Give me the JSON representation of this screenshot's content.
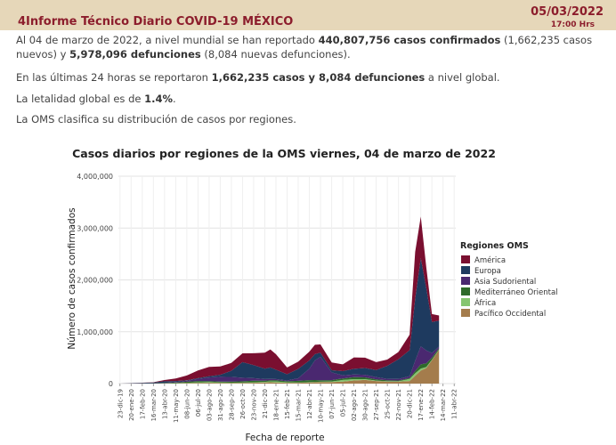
{
  "header": {
    "title": "4Informe Técnico Diario COVID-19 MÉXICO",
    "date": "05/03/2022",
    "time": "17:00 Hrs"
  },
  "summary": {
    "p1": {
      "t1": "Al 04 de marzo de 2022, a nivel mundial se han reportado ",
      "b1": "440,807,756 casos confirmados",
      "t2": " (1,662,235 casos nuevos) y ",
      "b2": "5,978,096 defunciones",
      "t3": " (8,084 nuevas defunciones)."
    },
    "p2": {
      "t1": "En las últimas 24 horas se reportaron ",
      "b1": "1,662,235 casos y 8,084 defunciones",
      "t2": " a nivel global."
    },
    "p3": {
      "t1": "La letalidad global es de ",
      "b1": "1.4%",
      "t2": "."
    },
    "p4": "La OMS clasifica su distribución de casos por regiones."
  },
  "colors": {
    "America": "#7a0f30",
    "Europa": "#1e3a5f",
    "Asia Sudoriental": "#4a2870",
    "Mediterraneo Oriental": "#2e6a2a",
    "Africa": "#86c56f",
    "Pacifico Occidental": "#a47c4c"
  },
  "chart_data": {
    "type": "area",
    "title": "Casos diarios por regiones de la OMS viernes, 04 de marzo de 2022",
    "xlabel": "Fecha de reporte",
    "ylabel": "Número de casos confirmados",
    "ylim": [
      0,
      4000000
    ],
    "yticks": [
      "0",
      "1,000,000",
      "2,000,000",
      "3,000,000",
      "4,000,000"
    ],
    "ytick_values": [
      0,
      1000000,
      2000000,
      3000000,
      4000000
    ],
    "xticks": [
      "23-dic-19",
      "20-ene-20",
      "17-feb-20",
      "16-mar-20",
      "13-abr-20",
      "11-may-20",
      "08-jun-20",
      "06-jul-20",
      "03-ago-20",
      "31-ago-20",
      "28-sep-20",
      "26-oct-20",
      "23-nov-20",
      "21-dic-20",
      "18-ene-21",
      "15-feb-21",
      "15-mar-21",
      "12-abr-21",
      "10-may-21",
      "07-jun-21",
      "05-jul-21",
      "02-ago-21",
      "30-ago-21",
      "27-sep-21",
      "25-oct-21",
      "22-nov-21",
      "20-dic-21",
      "17-ene-22",
      "14-feb-22",
      "14-mar-22",
      "11-abr-22"
    ],
    "legend_title": "Regiones OMS",
    "legend_position": "right",
    "grid": true,
    "x": [
      "23-dic-19",
      "16-mar-20",
      "13-abr-20",
      "11-may-20",
      "08-jun-20",
      "06-jul-20",
      "03-ago-20",
      "31-ago-20",
      "28-sep-20",
      "26-oct-20",
      "23-nov-20",
      "21-dic-20",
      "04-ene-21",
      "18-ene-21",
      "15-feb-21",
      "15-mar-21",
      "12-abr-21",
      "26-abr-21",
      "10-may-21",
      "07-jun-21",
      "05-jul-21",
      "02-ago-21",
      "30-ago-21",
      "27-sep-21",
      "25-oct-21",
      "22-nov-21",
      "20-dic-21",
      "03-ene-22",
      "17-ene-22",
      "31-ene-22",
      "14-feb-22",
      "04-mar-22"
    ],
    "series": [
      {
        "name": "América",
        "values": [
          0,
          5000,
          25000,
          50000,
          90000,
          150000,
          180000,
          160000,
          150000,
          170000,
          230000,
          310000,
          350000,
          300000,
          130000,
          140000,
          170000,
          180000,
          160000,
          150000,
          130000,
          220000,
          200000,
          150000,
          120000,
          140000,
          300000,
          900000,
          800000,
          400000,
          150000,
          100000
        ]
      },
      {
        "name": "Europa",
        "values": [
          0,
          15000,
          30000,
          20000,
          10000,
          15000,
          25000,
          40000,
          120000,
          300000,
          250000,
          200000,
          220000,
          180000,
          120000,
          180000,
          160000,
          120000,
          80000,
          40000,
          80000,
          110000,
          130000,
          140000,
          250000,
          380000,
          500000,
          1200000,
          1700000,
          1200000,
          600000,
          500000
        ]
      },
      {
        "name": "Asia Sudoriental",
        "values": [
          0,
          500,
          3000,
          10000,
          20000,
          40000,
          70000,
          90000,
          90000,
          70000,
          50000,
          30000,
          25000,
          20000,
          15000,
          50000,
          220000,
          380000,
          450000,
          150000,
          60000,
          50000,
          50000,
          40000,
          30000,
          30000,
          40000,
          200000,
          350000,
          250000,
          90000,
          30000
        ]
      },
      {
        "name": "Mediterráneo Oriental",
        "values": [
          0,
          2000,
          5000,
          10000,
          20000,
          25000,
          18000,
          18000,
          20000,
          25000,
          30000,
          25000,
          22000,
          25000,
          20000,
          30000,
          40000,
          35000,
          30000,
          25000,
          30000,
          40000,
          35000,
          25000,
          18000,
          15000,
          15000,
          40000,
          80000,
          70000,
          40000,
          25000
        ]
      },
      {
        "name": "África",
        "values": [
          0,
          200,
          1000,
          3000,
          8000,
          12000,
          15000,
          10000,
          8000,
          7000,
          10000,
          12000,
          18000,
          20000,
          10000,
          8000,
          7000,
          8000,
          6000,
          12000,
          30000,
          25000,
          15000,
          8000,
          5000,
          5000,
          40000,
          50000,
          40000,
          20000,
          10000,
          8000
        ]
      },
      {
        "name": "Pacífico Occidental",
        "values": [
          0,
          3000,
          5000,
          6000,
          8000,
          12000,
          15000,
          12000,
          10000,
          12000,
          15000,
          20000,
          25000,
          22000,
          15000,
          15000,
          20000,
          25000,
          30000,
          30000,
          40000,
          60000,
          70000,
          50000,
          40000,
          40000,
          50000,
          150000,
          250000,
          300000,
          450000,
          650000
        ]
      }
    ]
  }
}
